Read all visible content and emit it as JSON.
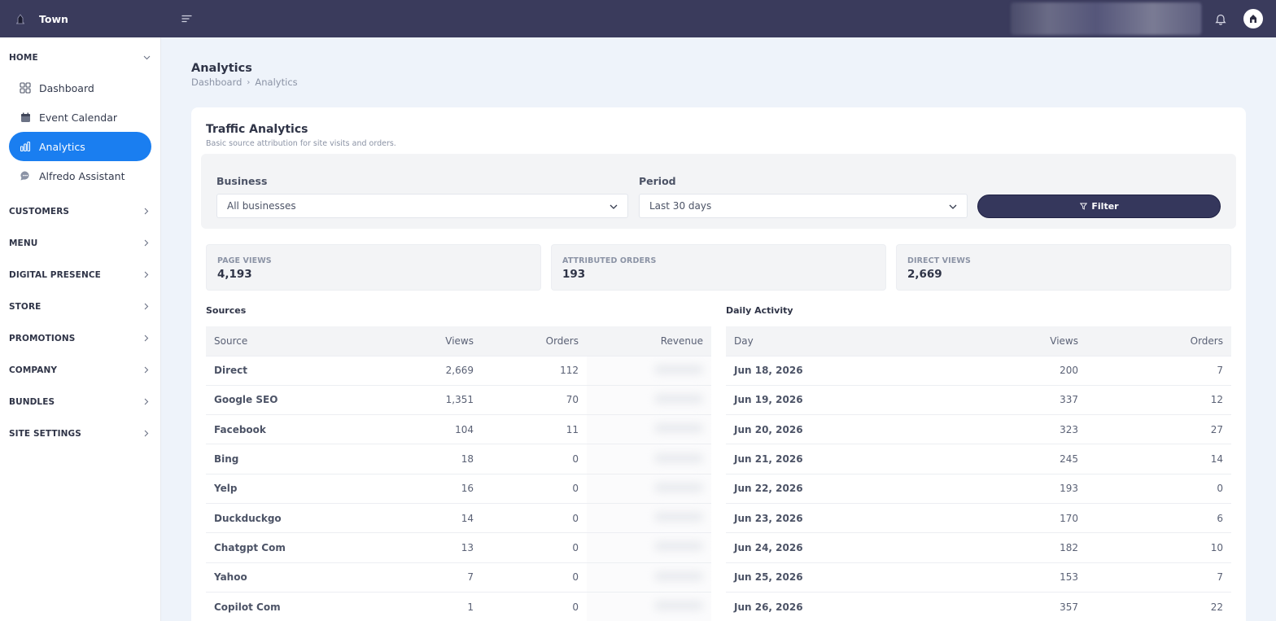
{
  "header": {
    "app_name": "Town"
  },
  "sidebar": {
    "sections": [
      {
        "label": "HOME",
        "expanded": true,
        "items": [
          {
            "label": "Dashboard",
            "icon": "grid-icon",
            "active": false
          },
          {
            "label": "Event Calendar",
            "icon": "calendar-icon",
            "active": false
          },
          {
            "label": "Analytics",
            "icon": "bar-chart-icon",
            "active": true
          },
          {
            "label": "Alfredo Assistant",
            "icon": "chat-bubble-icon",
            "active": false
          }
        ]
      },
      {
        "label": "CUSTOMERS"
      },
      {
        "label": "MENU"
      },
      {
        "label": "DIGITAL PRESENCE"
      },
      {
        "label": "STORE"
      },
      {
        "label": "PROMOTIONS"
      },
      {
        "label": "COMPANY"
      },
      {
        "label": "BUNDLES"
      },
      {
        "label": "SITE SETTINGS"
      }
    ]
  },
  "page": {
    "title": "Analytics",
    "breadcrumb": [
      "Dashboard",
      "Analytics"
    ]
  },
  "card": {
    "title": "Traffic Analytics",
    "subtitle": "Basic source attribution for site visits and orders."
  },
  "filters": {
    "business_label": "Business",
    "business_value": "All businesses",
    "period_label": "Period",
    "period_value": "Last 30 days",
    "filter_button": "Filter"
  },
  "stats": [
    {
      "label": "PAGE VIEWS",
      "value": "4,193"
    },
    {
      "label": "ATTRIBUTED ORDERS",
      "value": "193"
    },
    {
      "label": "DIRECT VIEWS",
      "value": "2,669"
    }
  ],
  "sources": {
    "title": "Sources",
    "columns": [
      "Source",
      "Views",
      "Orders",
      "Revenue"
    ],
    "rows": [
      {
        "source": "Direct",
        "views": "2,669",
        "orders": "112"
      },
      {
        "source": "Google SEO",
        "views": "1,351",
        "orders": "70"
      },
      {
        "source": "Facebook",
        "views": "104",
        "orders": "11"
      },
      {
        "source": "Bing",
        "views": "18",
        "orders": "0"
      },
      {
        "source": "Yelp",
        "views": "16",
        "orders": "0"
      },
      {
        "source": "Duckduckgo",
        "views": "14",
        "orders": "0"
      },
      {
        "source": "Chatgpt Com",
        "views": "13",
        "orders": "0"
      },
      {
        "source": "Yahoo",
        "views": "7",
        "orders": "0"
      },
      {
        "source": "Copilot Com",
        "views": "1",
        "orders": "0"
      }
    ]
  },
  "daily": {
    "title": "Daily Activity",
    "columns": [
      "Day",
      "Views",
      "Orders"
    ],
    "rows": [
      {
        "day": "Jun 18, 2026",
        "views": "200",
        "orders": "7"
      },
      {
        "day": "Jun 19, 2026",
        "views": "337",
        "orders": "12"
      },
      {
        "day": "Jun 20, 2026",
        "views": "323",
        "orders": "27"
      },
      {
        "day": "Jun 21, 2026",
        "views": "245",
        "orders": "14"
      },
      {
        "day": "Jun 22, 2026",
        "views": "193",
        "orders": "0"
      },
      {
        "day": "Jun 23, 2026",
        "views": "170",
        "orders": "6"
      },
      {
        "day": "Jun 24, 2026",
        "views": "182",
        "orders": "10"
      },
      {
        "day": "Jun 25, 2026",
        "views": "153",
        "orders": "7"
      },
      {
        "day": "Jun 26, 2026",
        "views": "357",
        "orders": "22"
      }
    ]
  },
  "colors": {
    "topbar": "#3a3b5c",
    "accent": "#1a7ef0",
    "filter_button": "#35375c"
  }
}
